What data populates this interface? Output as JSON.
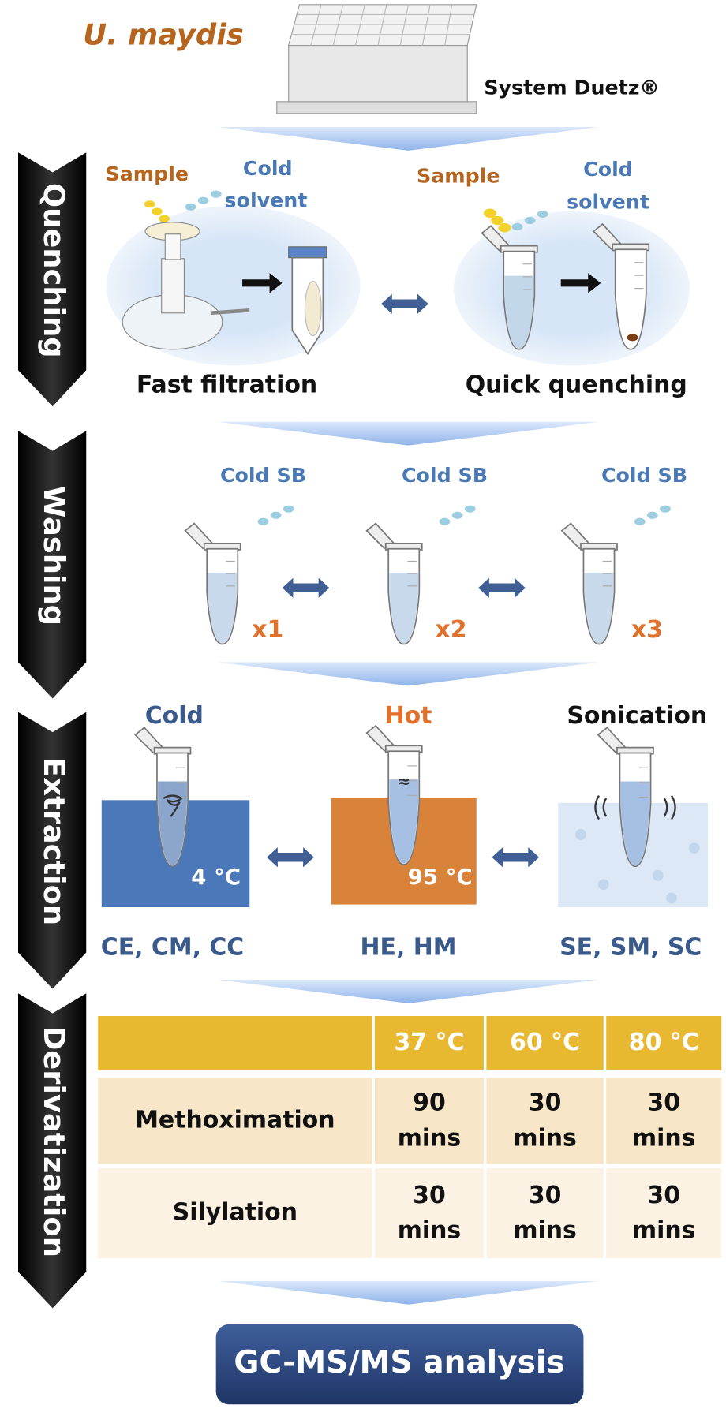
{
  "header": {
    "organism": "U. maydis",
    "system": "System Duetz®"
  },
  "stages": [
    "Quenching",
    "Washing",
    "Extraction",
    "Derivatization"
  ],
  "quenching": [
    {
      "sample": "Sample",
      "solvent": [
        "Cold",
        "solvent"
      ],
      "method": "Fast filtration"
    },
    {
      "sample": "Sample",
      "solvent": [
        "Cold",
        "solvent"
      ],
      "method": "Quick quenching"
    }
  ],
  "washing": [
    {
      "buffer": "Cold SB",
      "repeat": "x1"
    },
    {
      "buffer": "Cold SB",
      "repeat": "x2"
    },
    {
      "buffer": "Cold SB",
      "repeat": "x3"
    }
  ],
  "extraction": [
    {
      "name": "Cold",
      "temp": "4 °C",
      "codes": "CE, CM, CC"
    },
    {
      "name": "Hot",
      "temp": "95 °C",
      "codes": "HE, HM"
    },
    {
      "name": "Sonication",
      "codes": "SE, SM, SC"
    }
  ],
  "table": {
    "columns": [
      "37 °C",
      "60 °C",
      "80 °C"
    ],
    "rows": [
      {
        "name": "Methoximation",
        "cells": [
          {
            "value": "90",
            "unit": "mins"
          },
          {
            "value": "30",
            "unit": "mins"
          },
          {
            "value": "30",
            "unit": "mins"
          }
        ]
      },
      {
        "name": "Silylation",
        "cells": [
          {
            "value": "30",
            "unit": "mins"
          },
          {
            "value": "30",
            "unit": "mins"
          },
          {
            "value": "30",
            "unit": "mins"
          }
        ]
      }
    ]
  },
  "footer": {
    "analysis": "GC-MS/MS analysis"
  }
}
